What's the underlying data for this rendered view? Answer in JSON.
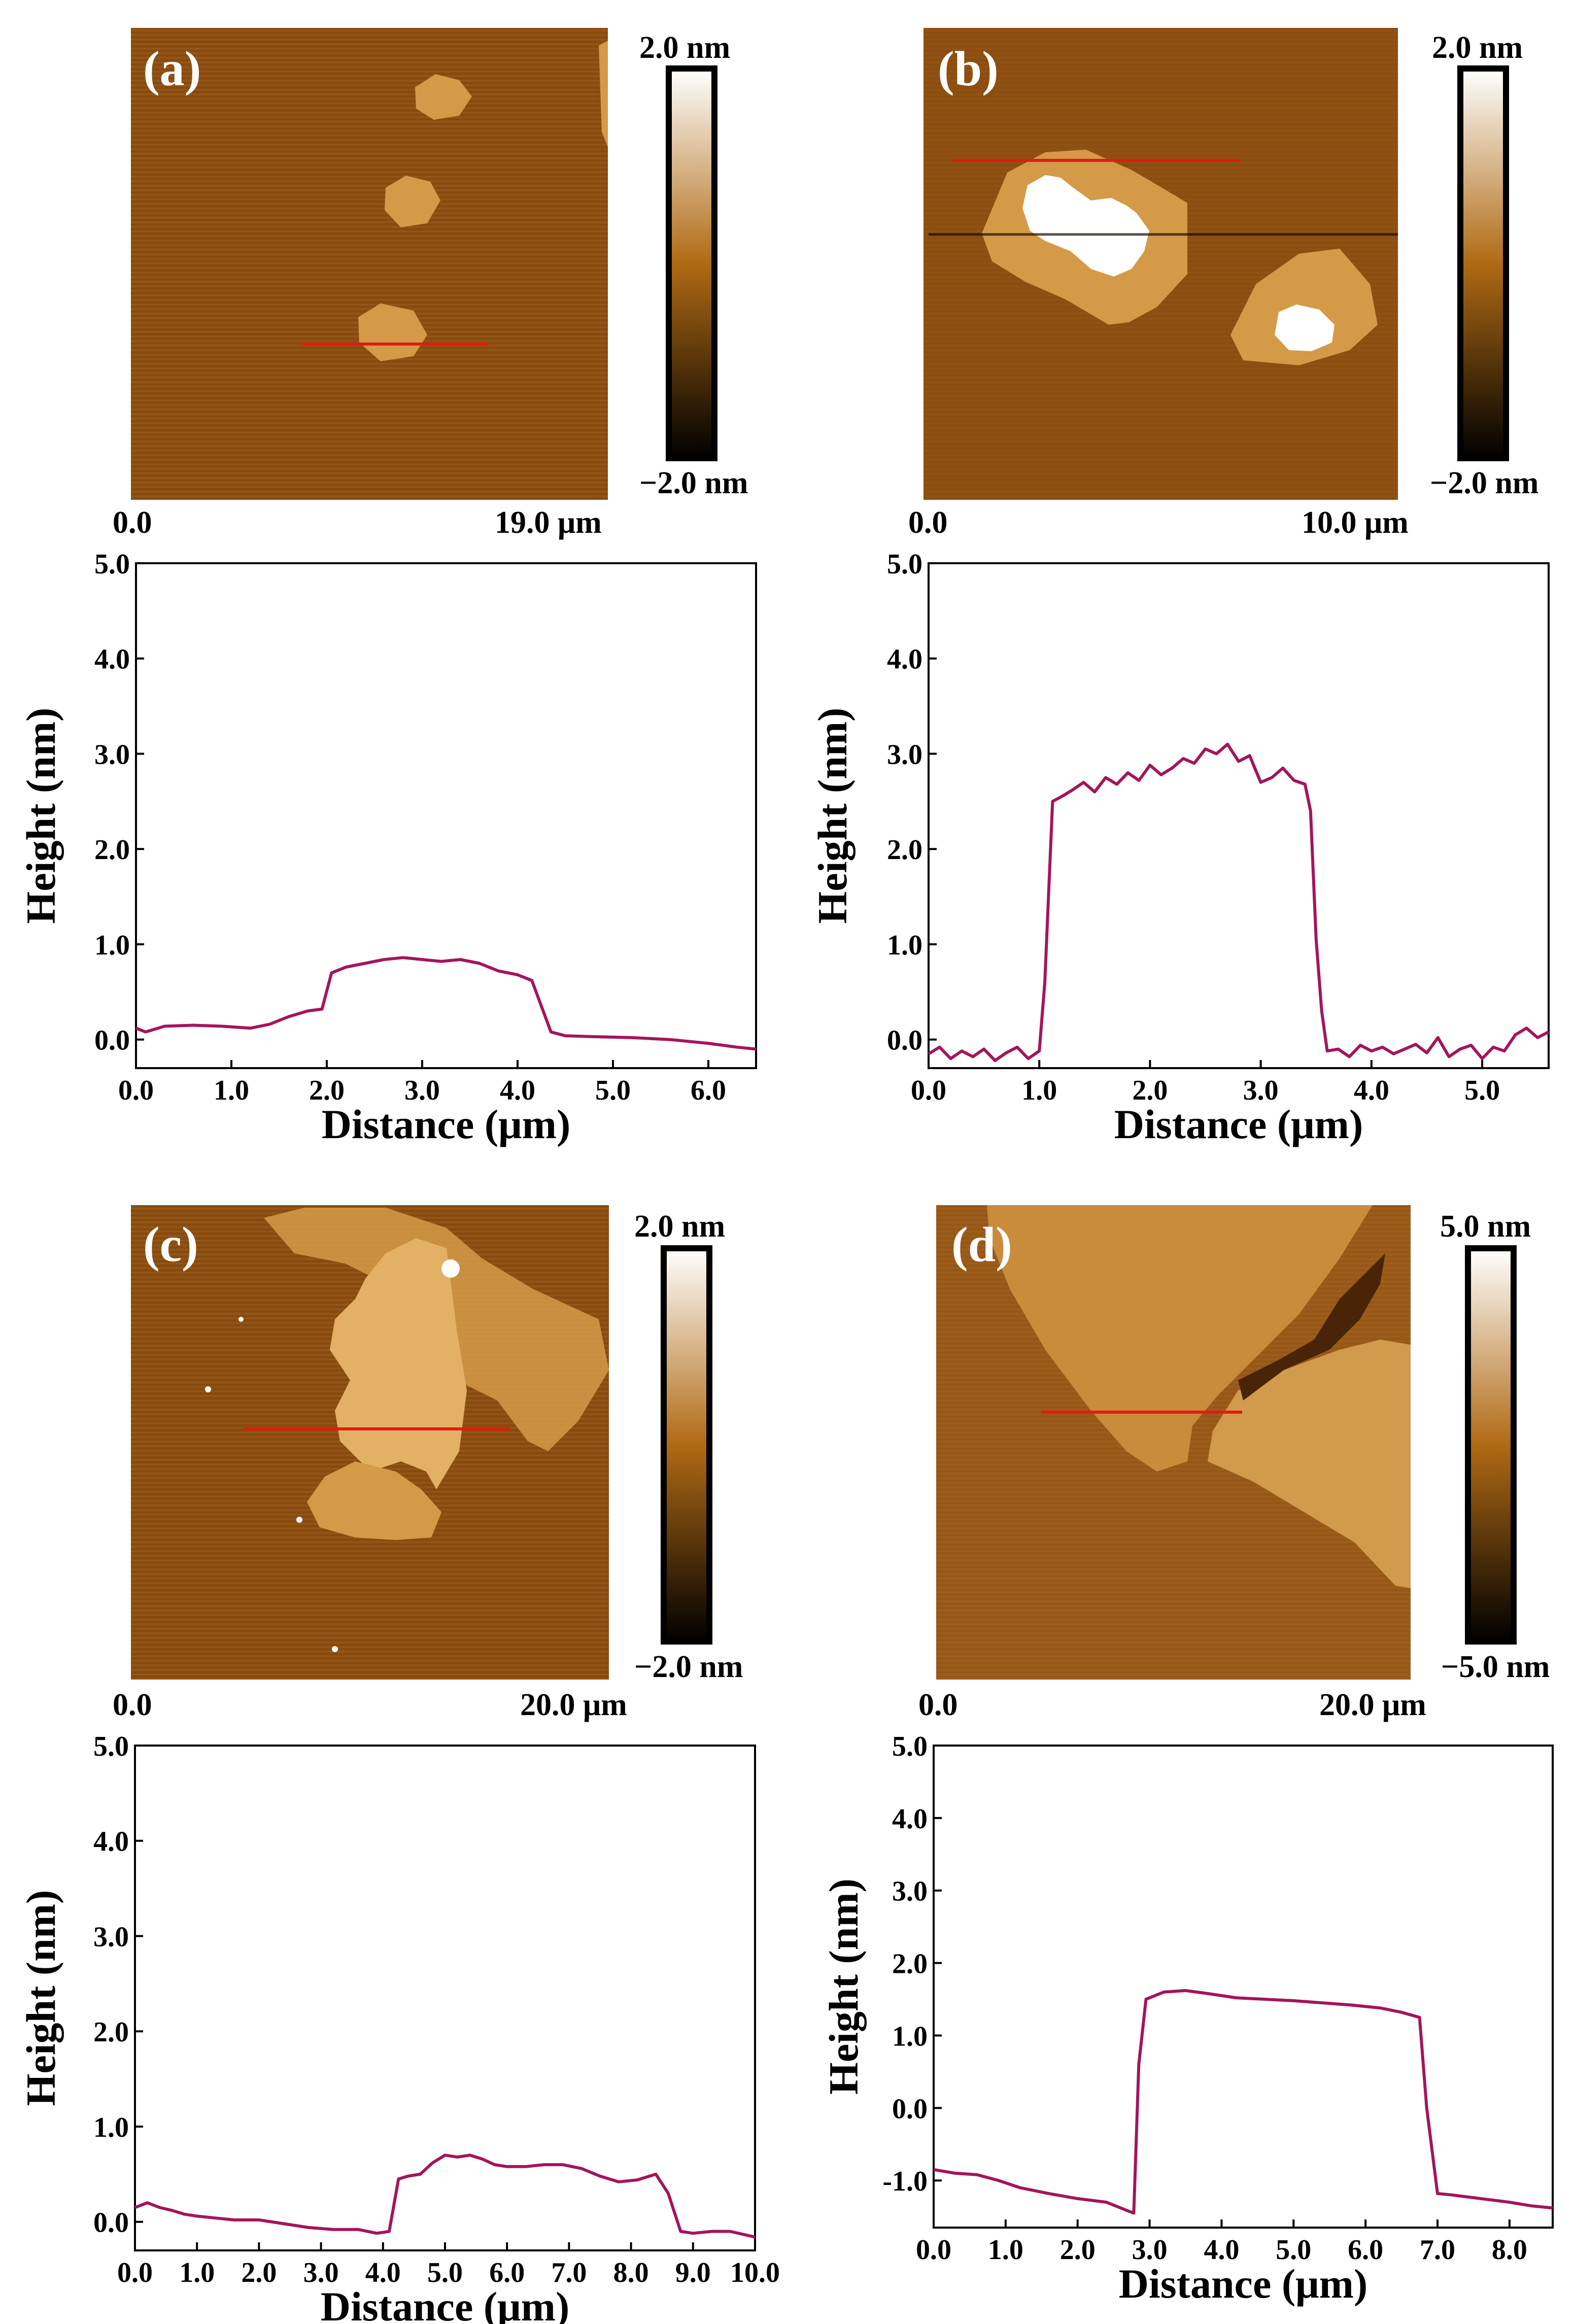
{
  "colors": {
    "profile": "#a3155a",
    "scan_line": "#e21b12",
    "colorbar_top": "#ffffff",
    "colorbar_mid": "#b06a14",
    "colorbar_bottom": "#000000",
    "substrate": "#8e4f10",
    "flake": "#d59a48",
    "particle": "#ffffff"
  },
  "panels": [
    {
      "id": "a",
      "panel_label": "(a)",
      "image": {
        "origin_label": "0.0",
        "scan_size_label": "19.0 μm",
        "colorbar_max_label": "2.0 nm",
        "colorbar_min_label": "−2.0 nm"
      },
      "chart_data": {
        "type": "line",
        "xlabel": "Distance (μm)",
        "ylabel": "Height (nm)",
        "xlim": [
          0,
          6.5
        ],
        "ylim": [
          -0.3,
          5.0
        ],
        "xticks": [
          0,
          1,
          2,
          3,
          4,
          5,
          6
        ],
        "xtick_labels": [
          "0.0",
          "1.0",
          "2.0",
          "3.0",
          "4.0",
          "5.0",
          "6.0"
        ],
        "yticks": [
          0,
          1,
          2,
          3,
          4,
          5
        ],
        "ytick_labels": [
          "0.0",
          "1.0",
          "2.0",
          "3.0",
          "4.0",
          "5.0"
        ],
        "x": [
          0.0,
          0.1,
          0.3,
          0.6,
          0.9,
          1.2,
          1.4,
          1.6,
          1.8,
          1.95,
          2.05,
          2.2,
          2.4,
          2.6,
          2.8,
          3.0,
          3.2,
          3.4,
          3.6,
          3.8,
          4.0,
          4.15,
          4.25,
          4.35,
          4.5,
          4.8,
          5.2,
          5.6,
          6.0,
          6.3,
          6.5
        ],
        "y": [
          0.12,
          0.08,
          0.14,
          0.15,
          0.14,
          0.12,
          0.16,
          0.24,
          0.3,
          0.32,
          0.7,
          0.76,
          0.8,
          0.84,
          0.86,
          0.84,
          0.82,
          0.84,
          0.8,
          0.72,
          0.68,
          0.62,
          0.35,
          0.08,
          0.04,
          0.03,
          0.02,
          0.0,
          -0.04,
          -0.08,
          -0.1
        ]
      }
    },
    {
      "id": "b",
      "panel_label": "(b)",
      "image": {
        "origin_label": "0.0",
        "scan_size_label": "10.0 μm",
        "colorbar_max_label": "2.0 nm",
        "colorbar_min_label": "−2.0 nm"
      },
      "chart_data": {
        "type": "line",
        "xlabel": "Distance (μm)",
        "ylabel": "Height (nm)",
        "xlim": [
          0,
          5.6
        ],
        "ylim": [
          -0.3,
          5.0
        ],
        "xticks": [
          0,
          1,
          2,
          3,
          4,
          5
        ],
        "xtick_labels": [
          "0.0",
          "1.0",
          "2.0",
          "3.0",
          "4.0",
          "5.0"
        ],
        "yticks": [
          0,
          1,
          2,
          3,
          4,
          5
        ],
        "ytick_labels": [
          "0.0",
          "1.0",
          "2.0",
          "3.0",
          "4.0",
          "5.0"
        ],
        "x": [
          0.0,
          0.1,
          0.2,
          0.3,
          0.4,
          0.5,
          0.6,
          0.7,
          0.8,
          0.9,
          1.0,
          1.05,
          1.12,
          1.2,
          1.3,
          1.4,
          1.5,
          1.6,
          1.7,
          1.8,
          1.9,
          2.0,
          2.1,
          2.2,
          2.3,
          2.4,
          2.5,
          2.6,
          2.7,
          2.8,
          2.9,
          3.0,
          3.1,
          3.2,
          3.3,
          3.4,
          3.45,
          3.5,
          3.55,
          3.6,
          3.7,
          3.8,
          3.9,
          4.0,
          4.1,
          4.2,
          4.3,
          4.4,
          4.5,
          4.6,
          4.7,
          4.8,
          4.9,
          5.0,
          5.1,
          5.2,
          5.3,
          5.4,
          5.5,
          5.6
        ],
        "y": [
          -0.15,
          -0.08,
          -0.2,
          -0.12,
          -0.18,
          -0.1,
          -0.22,
          -0.14,
          -0.08,
          -0.2,
          -0.12,
          0.6,
          2.5,
          2.55,
          2.62,
          2.7,
          2.6,
          2.75,
          2.68,
          2.8,
          2.72,
          2.88,
          2.78,
          2.85,
          2.95,
          2.9,
          3.05,
          3.0,
          3.1,
          2.92,
          2.98,
          2.7,
          2.75,
          2.85,
          2.72,
          2.68,
          2.4,
          1.05,
          0.3,
          -0.12,
          -0.1,
          -0.18,
          -0.06,
          -0.12,
          -0.08,
          -0.15,
          -0.1,
          -0.05,
          -0.14,
          0.02,
          -0.18,
          -0.1,
          -0.06,
          -0.2,
          -0.08,
          -0.12,
          0.05,
          0.12,
          0.02,
          0.08
        ]
      }
    },
    {
      "id": "c",
      "panel_label": "(c)",
      "image": {
        "origin_label": "0.0",
        "scan_size_label": "20.0 μm",
        "colorbar_max_label": "2.0 nm",
        "colorbar_min_label": "−2.0 nm"
      },
      "chart_data": {
        "type": "line",
        "xlabel": "Distance (μm)",
        "ylabel": "Height (nm)",
        "xlim": [
          0,
          10
        ],
        "ylim": [
          -0.3,
          5.0
        ],
        "xticks": [
          0,
          1,
          2,
          3,
          4,
          5,
          6,
          7,
          8,
          9,
          10
        ],
        "xtick_labels": [
          "0.0",
          "1.0",
          "2.0",
          "3.0",
          "4.0",
          "5.0",
          "6.0",
          "7.0",
          "8.0",
          "9.0",
          "10.0"
        ],
        "yticks": [
          0,
          1,
          2,
          3,
          4,
          5
        ],
        "ytick_labels": [
          "0.0",
          "1.0",
          "2.0",
          "3.0",
          "4.0",
          "5.0"
        ],
        "x": [
          0.0,
          0.2,
          0.4,
          0.6,
          0.8,
          1.0,
          1.3,
          1.6,
          2.0,
          2.4,
          2.8,
          3.2,
          3.6,
          3.9,
          4.1,
          4.25,
          4.4,
          4.6,
          4.8,
          5.0,
          5.2,
          5.4,
          5.6,
          5.8,
          6.0,
          6.3,
          6.6,
          6.9,
          7.2,
          7.5,
          7.8,
          8.1,
          8.4,
          8.6,
          8.8,
          9.0,
          9.3,
          9.6,
          10.0
        ],
        "y": [
          0.15,
          0.2,
          0.15,
          0.12,
          0.08,
          0.06,
          0.04,
          0.02,
          0.02,
          -0.02,
          -0.06,
          -0.08,
          -0.08,
          -0.12,
          -0.1,
          0.45,
          0.48,
          0.5,
          0.62,
          0.7,
          0.68,
          0.7,
          0.66,
          0.6,
          0.58,
          0.58,
          0.6,
          0.6,
          0.56,
          0.48,
          0.42,
          0.44,
          0.5,
          0.3,
          -0.1,
          -0.12,
          -0.1,
          -0.1,
          -0.16
        ]
      }
    },
    {
      "id": "d",
      "panel_label": "(d)",
      "image": {
        "origin_label": "0.0",
        "scan_size_label": "20.0 μm",
        "colorbar_max_label": "5.0 nm",
        "colorbar_min_label": "−5.0 nm"
      },
      "chart_data": {
        "type": "line",
        "xlabel": "Distance (μm)",
        "ylabel": "Height (nm)",
        "xlim": [
          0,
          8.6
        ],
        "ylim": [
          -1.65,
          5.0
        ],
        "xticks": [
          0,
          1,
          2,
          3,
          4,
          5,
          6,
          7,
          8
        ],
        "xtick_labels": [
          "0.0",
          "1.0",
          "2.0",
          "3.0",
          "4.0",
          "5.0",
          "6.0",
          "7.0",
          "8.0"
        ],
        "yticks": [
          -1,
          0,
          1,
          2,
          3,
          4,
          5
        ],
        "ytick_labels": [
          "-1.0",
          "0.0",
          "1.0",
          "2.0",
          "3.0",
          "4.0",
          "5.0"
        ],
        "x": [
          0.0,
          0.3,
          0.6,
          0.9,
          1.2,
          1.6,
          2.0,
          2.4,
          2.7,
          2.78,
          2.85,
          2.95,
          3.2,
          3.5,
          3.8,
          4.2,
          4.6,
          5.0,
          5.4,
          5.8,
          6.2,
          6.5,
          6.75,
          6.85,
          7.0,
          7.2,
          7.6,
          8.0,
          8.3,
          8.6
        ],
        "y": [
          -0.85,
          -0.9,
          -0.92,
          -1.0,
          -1.1,
          -1.18,
          -1.25,
          -1.3,
          -1.42,
          -1.45,
          0.6,
          1.5,
          1.6,
          1.62,
          1.58,
          1.52,
          1.5,
          1.48,
          1.45,
          1.42,
          1.38,
          1.32,
          1.25,
          0.0,
          -1.18,
          -1.2,
          -1.25,
          -1.3,
          -1.35,
          -1.38
        ]
      }
    }
  ]
}
